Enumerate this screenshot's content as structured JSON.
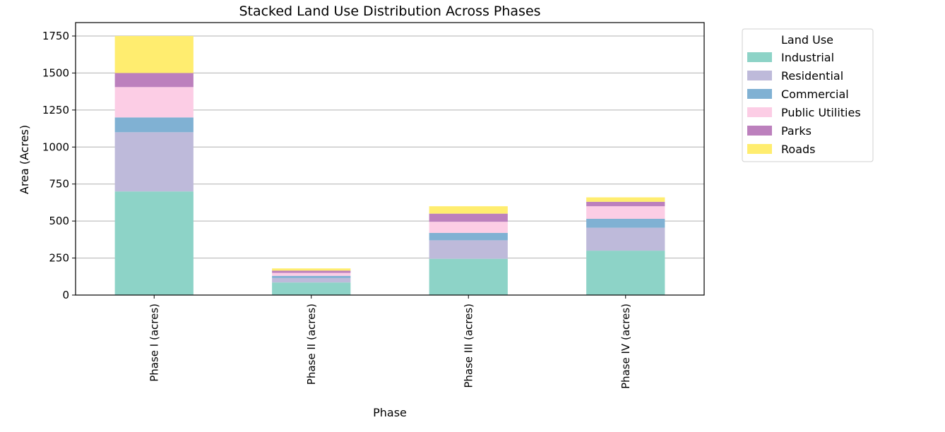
{
  "chart_data": {
    "type": "bar",
    "stacked": true,
    "title": "Stacked Land Use Distribution Across Phases",
    "xlabel": "Phase",
    "ylabel": "Area (Acres)",
    "ylim": [
      0,
      1750
    ],
    "yticks": [
      0,
      250,
      500,
      750,
      1000,
      1250,
      1500,
      1750
    ],
    "grid": "horizontal",
    "categories": [
      "Phase I (acres)",
      "Phase II (acres)",
      "Phase III (acres)",
      "Phase IV (acres)"
    ],
    "legend": {
      "title": "Land Use",
      "position": "outside-right"
    },
    "series": [
      {
        "name": "Industrial",
        "color": "#8dd3c7",
        "values": [
          700,
          85,
          245,
          300
        ]
      },
      {
        "name": "Residential",
        "color": "#bebada",
        "values": [
          400,
          30,
          125,
          155
        ]
      },
      {
        "name": "Commercial",
        "color": "#80b1d3",
        "values": [
          100,
          15,
          50,
          60
        ]
      },
      {
        "name": "Public Utilities",
        "color": "#fccde5",
        "values": [
          205,
          20,
          75,
          85
        ]
      },
      {
        "name": "Parks",
        "color": "#bc80bd",
        "values": [
          95,
          15,
          55,
          30
        ]
      },
      {
        "name": "Roads",
        "color": "#ffed6f",
        "values": [
          250,
          15,
          50,
          30
        ]
      }
    ]
  }
}
